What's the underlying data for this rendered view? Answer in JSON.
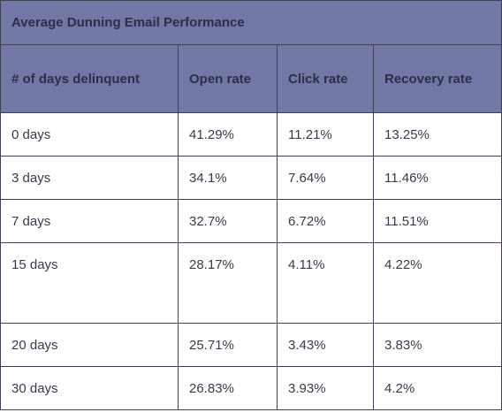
{
  "title": "Average Dunning Email Performance",
  "columns": [
    "# of days delinquent",
    "Open rate",
    "Click rate",
    "Recovery rate"
  ],
  "rows": [
    [
      "0 days",
      "41.29%",
      "11.21%",
      "13.25%"
    ],
    [
      "3 days",
      "34.1%",
      "7.64%",
      "11.46%"
    ],
    [
      "7 days",
      "32.7%",
      "6.72%",
      "11.51%"
    ],
    [
      "15 days",
      "28.17%",
      "4.11%",
      "4.22%"
    ],
    [
      "20 days",
      "25.71%",
      "3.43%",
      "3.83%"
    ],
    [
      "30 days",
      "26.83%",
      "3.93%",
      "4.2%"
    ]
  ],
  "colors": {
    "header_bg": "#7278a6",
    "border": "#3f3f55",
    "text": "#3a3a4a"
  }
}
